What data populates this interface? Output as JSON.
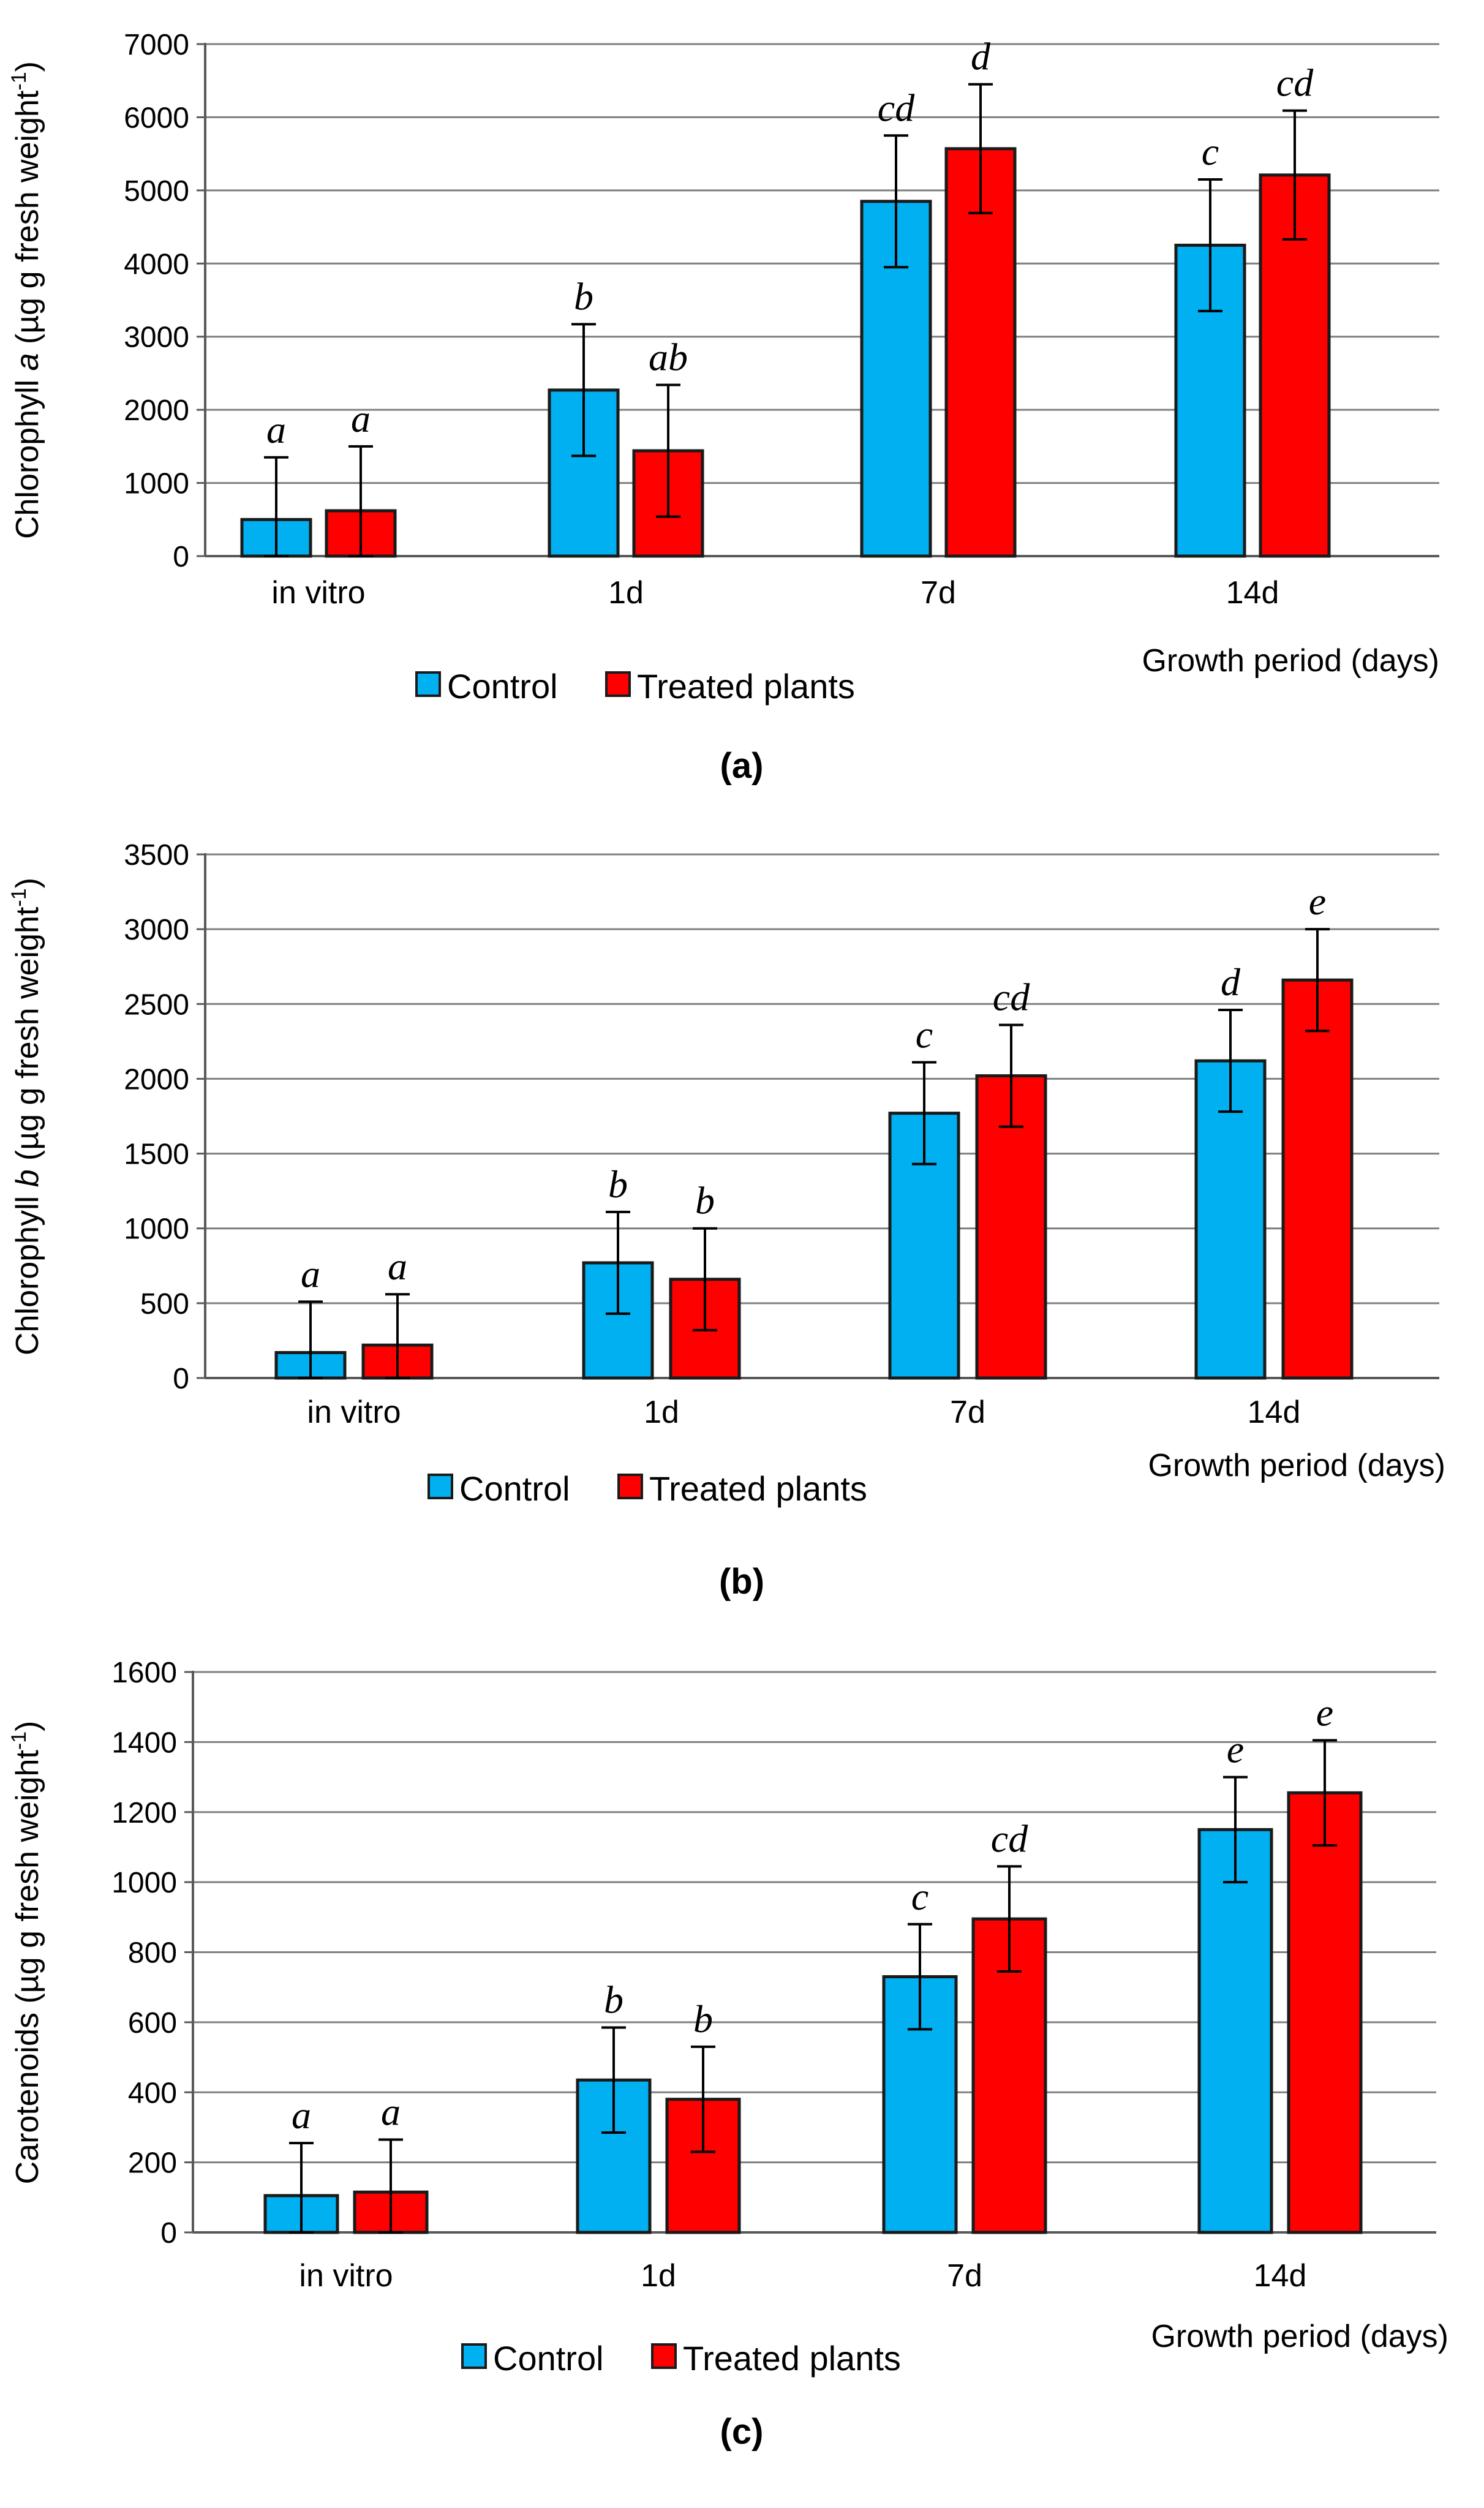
{
  "chart_data": [
    {
      "type": "bar",
      "panel_label": "(a)",
      "ylabel_parts": [
        "Chlorophyll ",
        "a",
        " (µg g fresh weight",
        "-1",
        ")"
      ],
      "xlabel": "Growth period (days)",
      "categories": [
        "in vitro",
        "1d",
        "7d",
        "14d"
      ],
      "ylim": [
        0,
        7000
      ],
      "yticks": [
        0,
        1000,
        2000,
        3000,
        4000,
        5000,
        6000,
        7000
      ],
      "grid": true,
      "series": [
        {
          "name": "Control",
          "color": "#00B0F0",
          "values": [
            500,
            2270,
            4850,
            4250
          ],
          "errors": [
            850,
            900,
            900,
            900
          ],
          "letters": [
            "a",
            "b",
            "cd",
            "c"
          ]
        },
        {
          "name": "Treated plants",
          "color": "#FF0000",
          "values": [
            620,
            1440,
            5570,
            5210
          ],
          "errors": [
            880,
            900,
            880,
            880
          ],
          "letters": [
            "a",
            "ab",
            "d",
            "cd"
          ]
        }
      ]
    },
    {
      "type": "bar",
      "panel_label": "(b)",
      "ylabel_parts": [
        "Chlorophyll ",
        "b",
        " (µg g fresh weight",
        "-1",
        ")"
      ],
      "xlabel": "Growth period (days)",
      "categories": [
        "in vitro",
        "1d",
        "7d",
        "14d"
      ],
      "ylim": [
        0,
        3500
      ],
      "yticks": [
        0,
        500,
        1000,
        1500,
        2000,
        2500,
        3000,
        3500
      ],
      "grid": true,
      "series": [
        {
          "name": "Control",
          "color": "#00B0F0",
          "values": [
            170,
            770,
            1770,
            2120
          ],
          "errors": [
            340,
            340,
            340,
            340
          ],
          "letters": [
            "a",
            "b",
            "c",
            "d"
          ]
        },
        {
          "name": "Treated plants",
          "color": "#FF0000",
          "values": [
            220,
            660,
            2020,
            2660
          ],
          "errors": [
            340,
            340,
            340,
            340
          ],
          "letters": [
            "a",
            "b",
            "cd",
            "e"
          ]
        }
      ]
    },
    {
      "type": "bar",
      "panel_label": "(c)",
      "ylabel_parts": [
        "Carotenoids (µg g fresh weight",
        "-1",
        ")"
      ],
      "xlabel": "Growth period (days)",
      "categories": [
        "in vitro",
        "1d",
        "7d",
        "14d"
      ],
      "ylim": [
        0,
        1600
      ],
      "yticks": [
        0,
        200,
        400,
        600,
        800,
        1000,
        1200,
        1400,
        1600
      ],
      "grid": true,
      "series": [
        {
          "name": "Control",
          "color": "#00B0F0",
          "values": [
            105,
            435,
            730,
            1150
          ],
          "errors": [
            150,
            150,
            150,
            150
          ],
          "letters": [
            "a",
            "b",
            "c",
            "e"
          ]
        },
        {
          "name": "Treated plants",
          "color": "#FF0000",
          "values": [
            115,
            380,
            895,
            1255
          ],
          "errors": [
            150,
            150,
            150,
            150
          ],
          "letters": [
            "a",
            "b",
            "cd",
            "e"
          ]
        }
      ]
    }
  ]
}
